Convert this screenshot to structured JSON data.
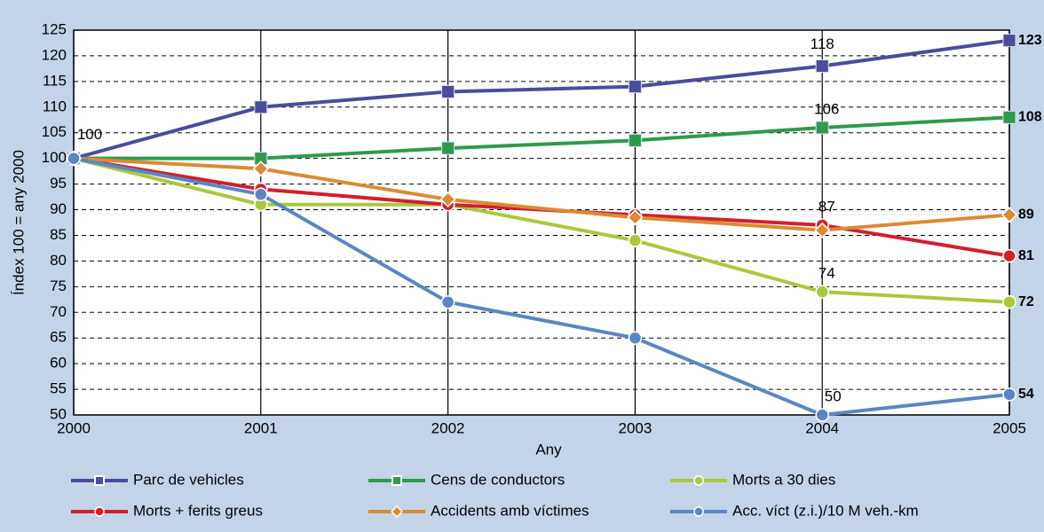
{
  "chart_data": {
    "type": "line",
    "x_label": "Any",
    "y_label": "Índex 100 = any 2000",
    "x": [
      2000,
      2001,
      2002,
      2003,
      2004,
      2005
    ],
    "xlim": [
      2000,
      2005
    ],
    "xticks": [
      2000,
      2001,
      2002,
      2003,
      2004,
      2005
    ],
    "ylim": [
      50,
      125
    ],
    "yticks": [
      50,
      55,
      60,
      65,
      70,
      75,
      80,
      85,
      90,
      95,
      100,
      105,
      110,
      115,
      120,
      125
    ],
    "grid": true,
    "series": [
      {
        "name": "Parc de vehicles",
        "color": "#4a4c9c",
        "marker": "square",
        "values": [
          100,
          110,
          113,
          114,
          118,
          123
        ]
      },
      {
        "name": "Cens de conductors",
        "color": "#2f9a4c",
        "marker": "square",
        "values": [
          100,
          100,
          102,
          103.5,
          106,
          108
        ]
      },
      {
        "name": "Morts a 30 dies",
        "color": "#a9c83c",
        "marker": "circle",
        "values": [
          100,
          91,
          91,
          84,
          74,
          72
        ]
      },
      {
        "name": "Morts + ferits greus",
        "color": "#d0202e",
        "marker": "circle",
        "values": [
          100,
          94,
          91,
          89,
          87,
          81
        ]
      },
      {
        "name": "Accidents amb víctimes",
        "color": "#d98b35",
        "marker": "diamond",
        "values": [
          100,
          98,
          92,
          88.5,
          86,
          89
        ]
      },
      {
        "name": "Acc. víct (z.i.)/10 M veh.-km",
        "color": "#5b86c5",
        "marker": "circle",
        "values": [
          100,
          93,
          72,
          65,
          50,
          54
        ]
      }
    ]
  }
}
